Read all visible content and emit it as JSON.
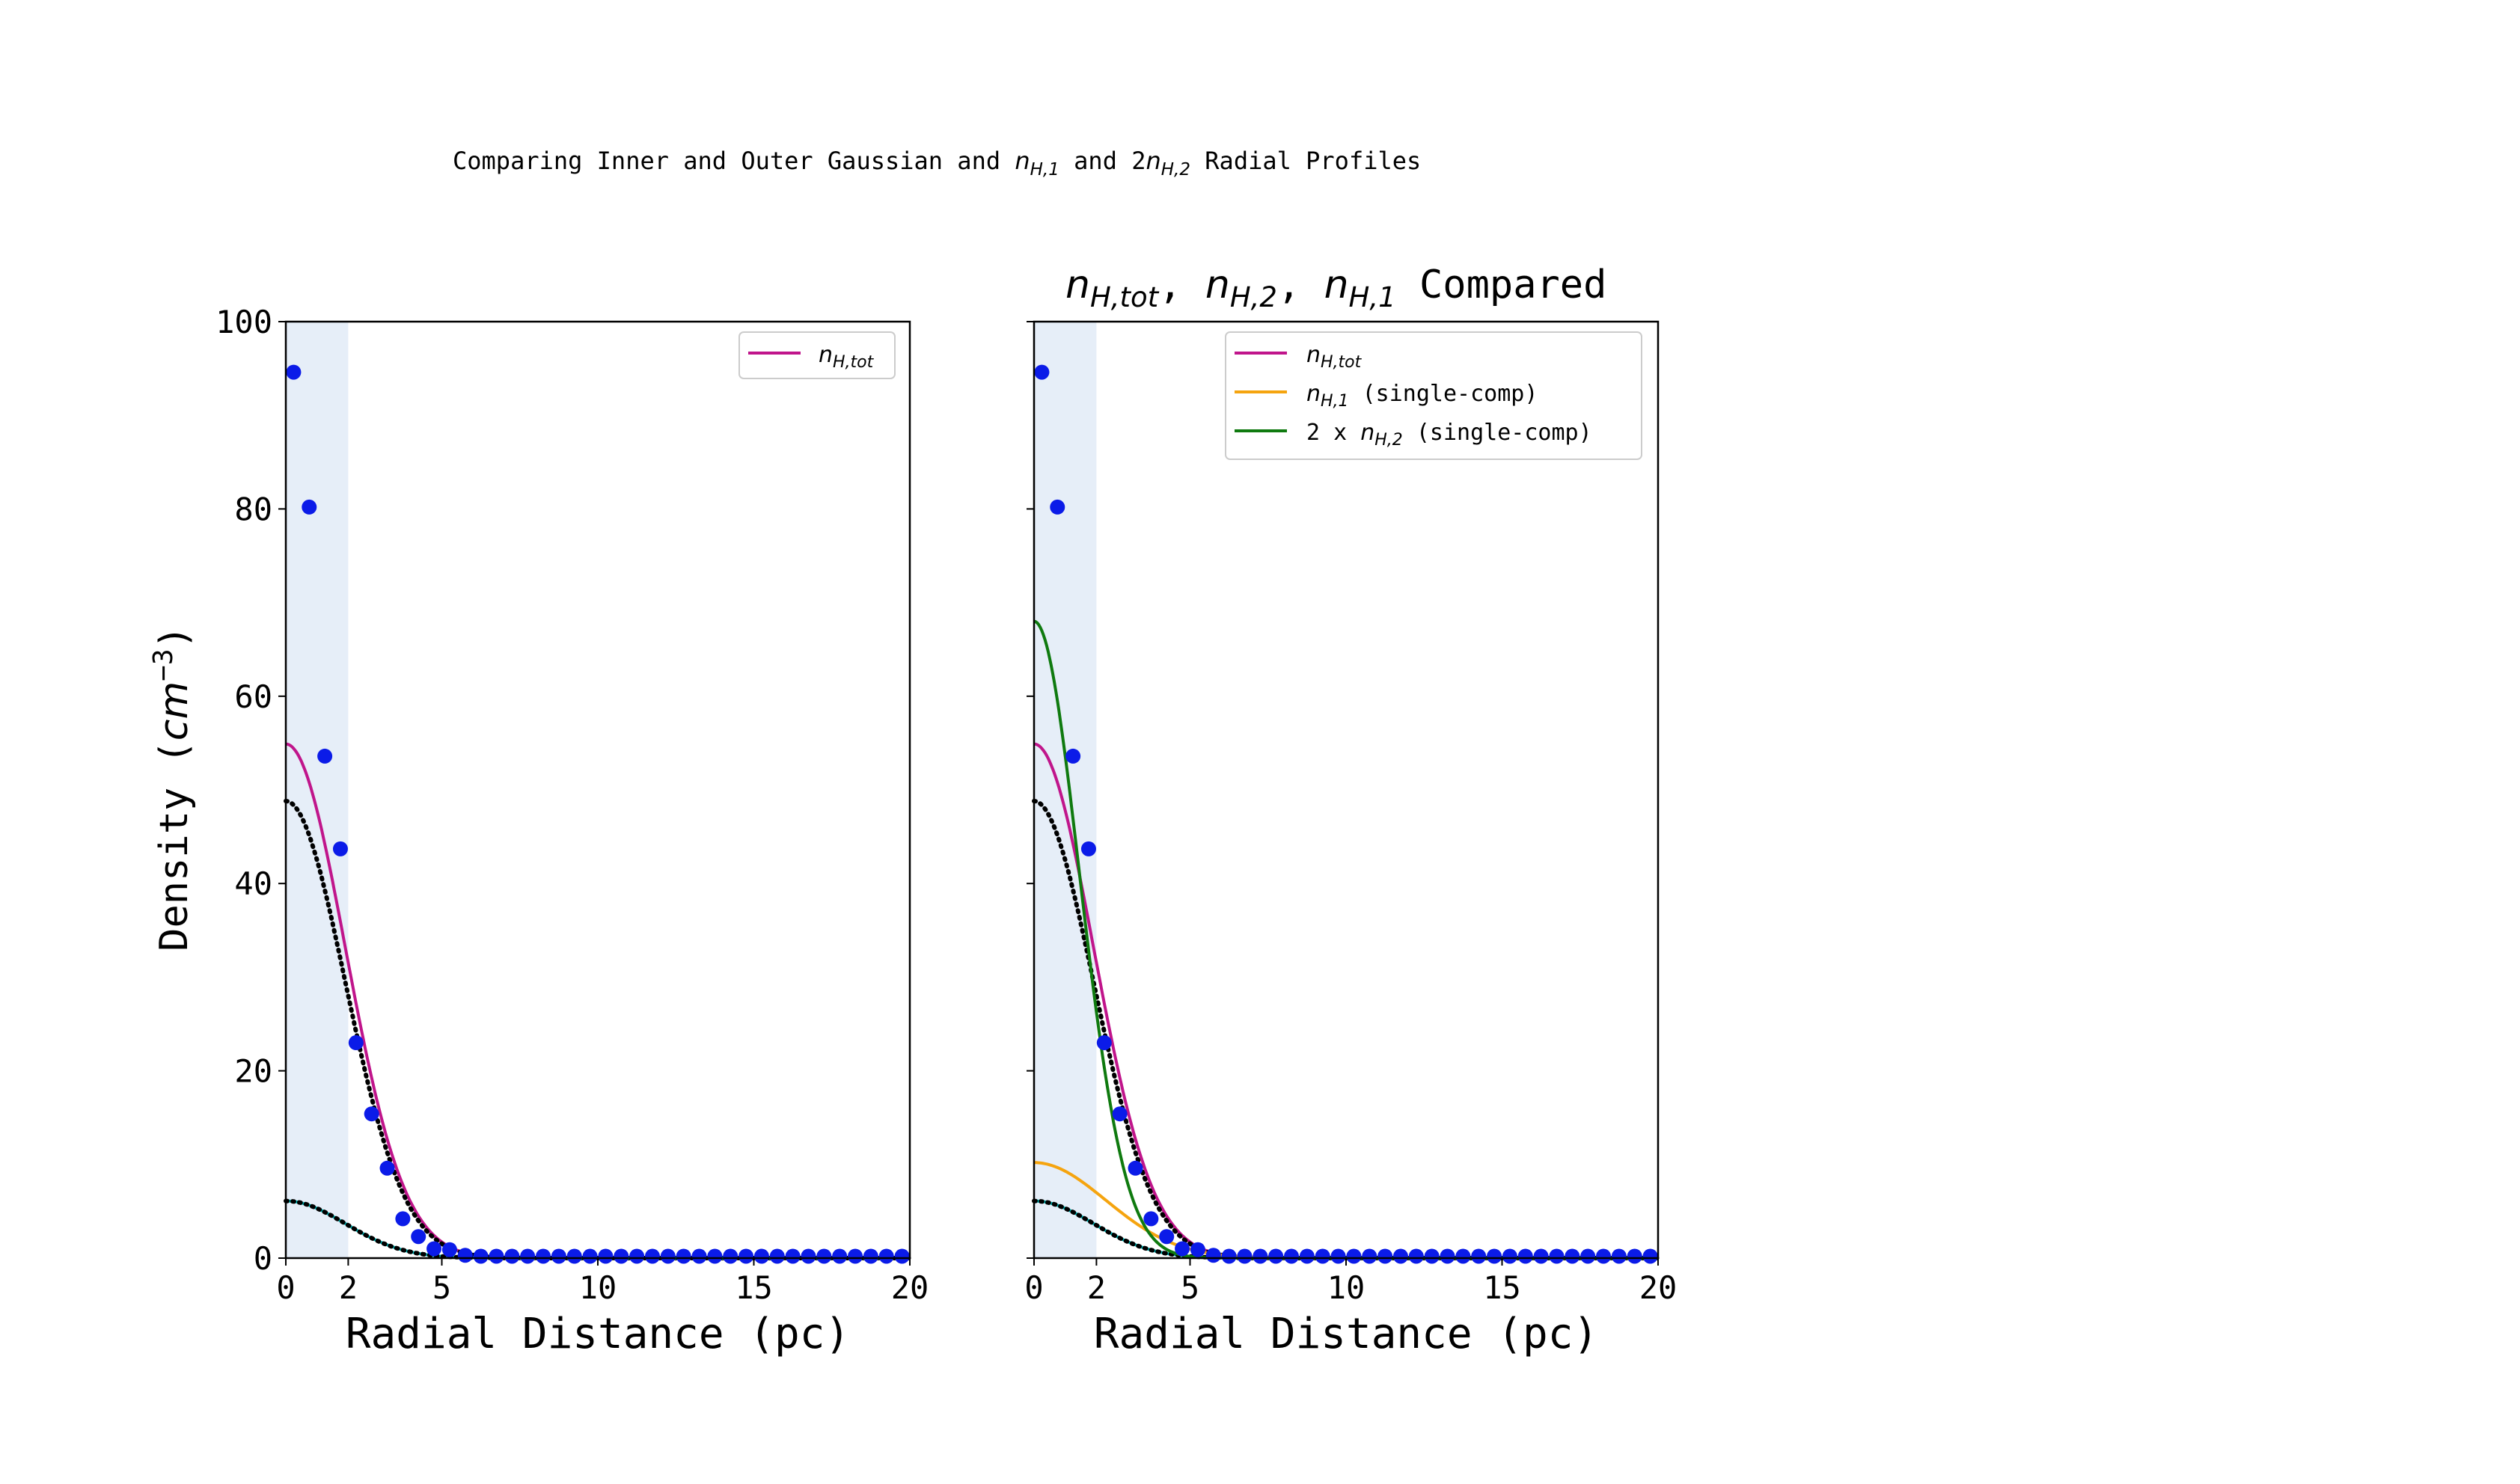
{
  "figure": {
    "suptitle_pre": "Comparing Inner and Outer Gaussian and ",
    "suptitle_n": "n",
    "suptitle_sub1": "H,1",
    "suptitle_mid": " and 2",
    "suptitle_n2": "n",
    "suptitle_sub2": "H,2",
    "suptitle_post": " Radial Profiles",
    "ylabel_pre": "Density (",
    "ylabel_unit": "cm",
    "ylabel_exp": "−3",
    "ylabel_post": ")",
    "colors": {
      "n_tot": "#c0158b",
      "n_h1": "#f5a40f",
      "n_h2x2": "#0f7a0f",
      "points": "#0b1be8",
      "shade": "#e6eef8",
      "inner": "#000000",
      "outer": "#00c8c8"
    }
  },
  "chart_data": [
    {
      "type": "line",
      "title": "",
      "xlabel": "Radial Distance (pc)",
      "ylabel": "Density (cm^-3)",
      "xlim": [
        0,
        20
      ],
      "ylim": [
        0,
        100
      ],
      "xticks": [
        "0",
        "2",
        "5",
        "10",
        "15",
        "20"
      ],
      "yticks": [
        "0",
        "20",
        "40",
        "60",
        "80",
        "100"
      ],
      "shaded_x": [
        0,
        2
      ],
      "legend_location": "upper right",
      "legend": [
        {
          "label": "n_H,tot",
          "n": "n",
          "sub": "H,tot",
          "rest": "",
          "color_key": "n_tot"
        }
      ],
      "series": [
        {
          "name": "n_H,tot",
          "color_key": "n_tot",
          "style": "solid",
          "gaussians": [
            [
              48.8,
              1.9
            ],
            [
              6.1,
              1.9
            ]
          ]
        },
        {
          "name": "",
          "color_key": "inner",
          "style": "dotted",
          "gaussians": [
            [
              48.8,
              1.9
            ]
          ]
        },
        {
          "name": "",
          "color_key": "outer",
          "style": "solid",
          "gaussians": [
            [
              6.1,
              1.9
            ]
          ]
        },
        {
          "name": "",
          "color_key": "inner",
          "style": "dotted",
          "gaussians": [
            [
              6.1,
              1.9
            ]
          ]
        }
      ],
      "points": {
        "x": [
          0.25,
          0.75,
          1.25,
          1.75,
          2.25,
          2.75,
          3.25,
          3.75,
          4.25,
          4.75,
          5.25,
          5.75,
          6.25,
          6.75,
          7.25,
          7.75,
          8.25,
          8.75,
          9.25,
          9.75,
          10.25,
          10.75,
          11.25,
          11.75,
          12.25,
          12.75,
          13.25,
          13.75,
          14.25,
          14.75,
          15.25,
          15.75,
          16.25,
          16.75,
          17.25,
          17.75,
          18.25,
          18.75,
          19.25,
          19.75
        ],
        "y": [
          94.6,
          80.2,
          53.6,
          43.7,
          23.0,
          15.4,
          9.6,
          4.2,
          2.3,
          1.0,
          0.9,
          0.3,
          0.2,
          0.2,
          0.2,
          0.2,
          0.2,
          0.2,
          0.2,
          0.2,
          0.2,
          0.2,
          0.2,
          0.2,
          0.2,
          0.2,
          0.2,
          0.2,
          0.2,
          0.2,
          0.2,
          0.2,
          0.2,
          0.2,
          0.2,
          0.2,
          0.2,
          0.2,
          0.2,
          0.2
        ]
      }
    },
    {
      "type": "line",
      "title": "n_H,tot, n_H,2, n_H,1 Compared",
      "title_parts": [
        {
          "n": "n",
          "sub": "H,tot",
          "rest": ", "
        },
        {
          "n": "n",
          "sub": "H,2",
          "rest": ", "
        },
        {
          "n": "n",
          "sub": "H,1",
          "rest": " Compared"
        }
      ],
      "xlabel": "Radial Distance (pc)",
      "ylabel": "",
      "xlim": [
        0,
        20
      ],
      "ylim": [
        0,
        100
      ],
      "xticks": [
        "0",
        "2",
        "5",
        "10",
        "15",
        "20"
      ],
      "yticks": [
        "",
        "",
        "",
        "",
        "",
        ""
      ],
      "shaded_x": [
        0,
        2
      ],
      "legend_location": "upper right",
      "legend": [
        {
          "label": "n_H,tot",
          "pre": "",
          "n": "n",
          "sub": "H,tot",
          "rest": "",
          "color_key": "n_tot"
        },
        {
          "label": "n_H,1 (single-comp)",
          "pre": "",
          "n": "n",
          "sub": "H,1",
          "rest": " (single-comp)",
          "color_key": "n_h1"
        },
        {
          "label": "2 x n_H,2 (single-comp)",
          "pre": "2 x ",
          "n": "n",
          "sub": "H,2",
          "rest": " (single-comp)",
          "color_key": "n_h2x2"
        }
      ],
      "series": [
        {
          "name": "n_H,tot",
          "color_key": "n_tot",
          "style": "solid",
          "gaussians": [
            [
              48.8,
              1.9
            ],
            [
              6.1,
              1.9
            ]
          ]
        },
        {
          "name": "",
          "color_key": "inner",
          "style": "dotted",
          "gaussians": [
            [
              48.8,
              1.9
            ]
          ]
        },
        {
          "name": "",
          "color_key": "outer",
          "style": "solid",
          "gaussians": [
            [
              6.1,
              1.9
            ]
          ]
        },
        {
          "name": "",
          "color_key": "inner",
          "style": "dotted",
          "gaussians": [
            [
              6.1,
              1.9
            ]
          ]
        },
        {
          "name": "n_H,1 (single-comp)",
          "color_key": "n_h1",
          "style": "solid",
          "gaussians": [
            [
              10.2,
              2.3
            ]
          ]
        },
        {
          "name": "2 x n_H,2 (single-comp)",
          "color_key": "n_h2x2",
          "style": "solid",
          "gaussians": [
            [
              68.0,
              1.45
            ]
          ]
        }
      ],
      "points": {
        "x": [
          0.25,
          0.75,
          1.25,
          1.75,
          2.25,
          2.75,
          3.25,
          3.75,
          4.25,
          4.75,
          5.25,
          5.75,
          6.25,
          6.75,
          7.25,
          7.75,
          8.25,
          8.75,
          9.25,
          9.75,
          10.25,
          10.75,
          11.25,
          11.75,
          12.25,
          12.75,
          13.25,
          13.75,
          14.25,
          14.75,
          15.25,
          15.75,
          16.25,
          16.75,
          17.25,
          17.75,
          18.25,
          18.75,
          19.25,
          19.75
        ],
        "y": [
          94.6,
          80.2,
          53.6,
          43.7,
          23.0,
          15.4,
          9.6,
          4.2,
          2.3,
          1.0,
          0.9,
          0.3,
          0.2,
          0.2,
          0.2,
          0.2,
          0.2,
          0.2,
          0.2,
          0.2,
          0.2,
          0.2,
          0.2,
          0.2,
          0.2,
          0.2,
          0.2,
          0.2,
          0.2,
          0.2,
          0.2,
          0.2,
          0.2,
          0.2,
          0.2,
          0.2,
          0.2,
          0.2,
          0.2,
          0.2
        ]
      }
    }
  ]
}
